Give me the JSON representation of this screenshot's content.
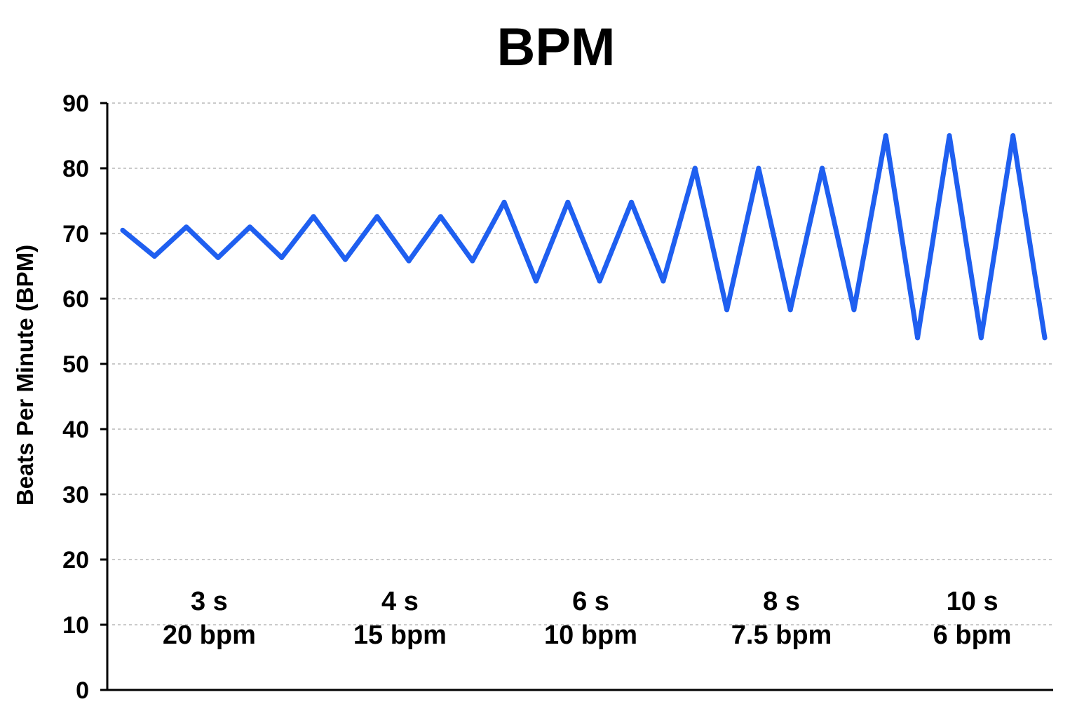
{
  "chart_data": {
    "type": "line",
    "title": "BPM",
    "xlabel": "",
    "ylabel": "Beats Per Minute (BPM)",
    "ylim": [
      0,
      90
    ],
    "yticks": [
      0,
      10,
      20,
      30,
      40,
      50,
      60,
      70,
      80,
      90
    ],
    "grid": true,
    "color": "#1f5ff0",
    "segments": [
      {
        "duration": "3 s",
        "rate": "20 bpm"
      },
      {
        "duration": "4 s",
        "rate": "15 bpm"
      },
      {
        "duration": "6 s",
        "rate": "10 bpm"
      },
      {
        "duration": "8 s",
        "rate": "7.5 bpm"
      },
      {
        "duration": "10 s",
        "rate": "6 bpm"
      }
    ],
    "series": [
      {
        "values": [
          70.5,
          66.5,
          71,
          66.3,
          71,
          66.3,
          72.6,
          66,
          72.6,
          65.8,
          72.6,
          65.8,
          74.8,
          62.7,
          74.8,
          62.7,
          74.8,
          62.7,
          80,
          58.3,
          80,
          58.3,
          80,
          58.3,
          85,
          54,
          85,
          54,
          85,
          54
        ]
      }
    ]
  }
}
